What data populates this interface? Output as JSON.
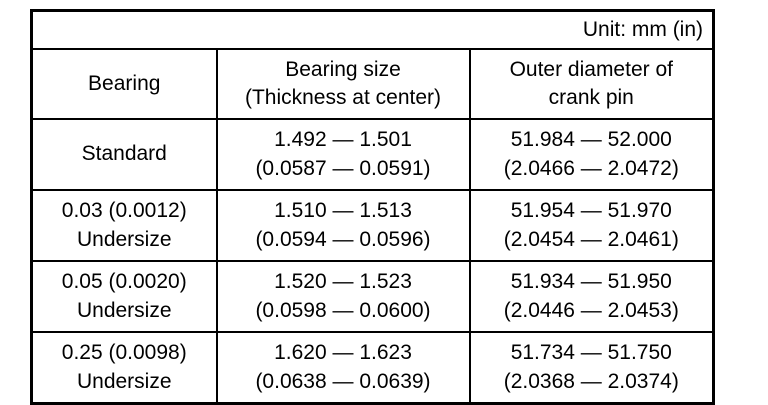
{
  "unit_label": "Unit: mm (in)",
  "colors": {
    "background": "#ffffff",
    "border": "#000000",
    "text": "#000000"
  },
  "table": {
    "headers": [
      "Bearing",
      "Bearing size\n(Thickness at center)",
      "Outer diameter of\ncrank pin"
    ],
    "rows": [
      {
        "bearing": "Standard",
        "bearing_size": "1.492 — 1.501\n(0.0587 — 0.0591)",
        "outer_diameter": "51.984 — 52.000\n(2.0466 — 2.0472)"
      },
      {
        "bearing": "0.03 (0.0012)\nUndersize",
        "bearing_size": "1.510 — 1.513\n(0.0594 — 0.0596)",
        "outer_diameter": "51.954 — 51.970\n(2.0454 — 2.0461)"
      },
      {
        "bearing": "0.05 (0.0020)\nUndersize",
        "bearing_size": "1.520 — 1.523\n(0.0598 — 0.0600)",
        "outer_diameter": "51.934 — 51.950\n(2.0446 — 2.0453)"
      },
      {
        "bearing": "0.25 (0.0098)\nUndersize",
        "bearing_size": "1.620 — 1.623\n(0.0638 — 0.0639)",
        "outer_diameter": "51.734 — 51.750\n(2.0368 — 2.0374)"
      }
    ]
  }
}
